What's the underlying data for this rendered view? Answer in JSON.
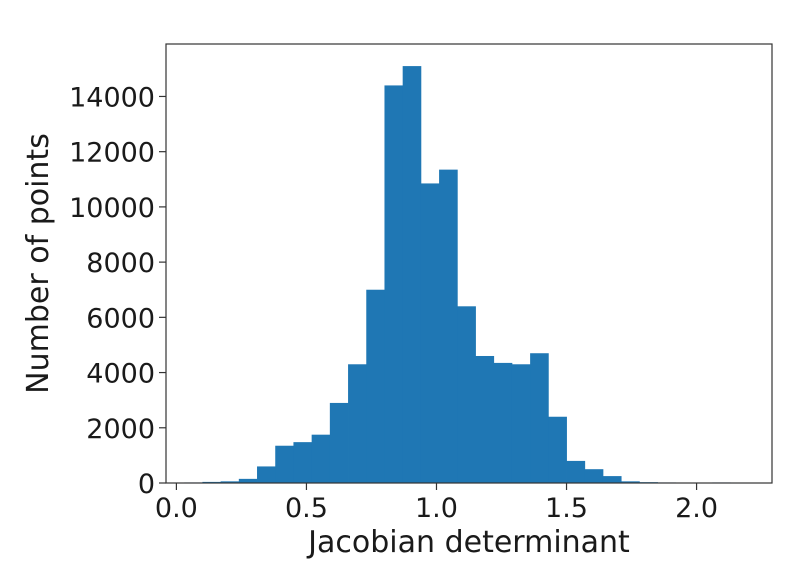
{
  "chart_data": {
    "type": "bar",
    "subtype": "histogram",
    "title": "",
    "xlabel": "Jacobian determinant",
    "ylabel": "Number of points",
    "xlim": [
      -0.04,
      2.29
    ],
    "ylim": [
      0,
      15900
    ],
    "x_ticks": [
      0.0,
      0.5,
      1.0,
      1.5,
      2.0
    ],
    "x_tick_labels": [
      "0.0",
      "0.5",
      "1.0",
      "1.5",
      "2.0"
    ],
    "y_ticks": [
      0,
      2000,
      4000,
      6000,
      8000,
      10000,
      12000,
      14000
    ],
    "y_tick_labels": [
      "0",
      "2000",
      "4000",
      "6000",
      "8000",
      "10000",
      "12000",
      "14000"
    ],
    "grid": false,
    "legend": "none",
    "color": "#1f77b4",
    "bin_edges": [
      0.03,
      0.1,
      0.17,
      0.24,
      0.31,
      0.38,
      0.45,
      0.52,
      0.59,
      0.66,
      0.73,
      0.8,
      0.87,
      0.94,
      1.01,
      1.08,
      1.15,
      1.22,
      1.29,
      1.36,
      1.43,
      1.5,
      1.57,
      1.64,
      1.71,
      1.78,
      1.85,
      1.92,
      1.99,
      2.06,
      2.13,
      2.2
    ],
    "values": [
      20,
      40,
      60,
      150,
      600,
      1350,
      1480,
      1750,
      2900,
      4300,
      7000,
      14400,
      15100,
      10850,
      11350,
      6400,
      4600,
      4350,
      4300,
      4700,
      2400,
      800,
      500,
      250,
      60,
      30,
      20,
      10,
      10,
      20,
      10
    ]
  }
}
